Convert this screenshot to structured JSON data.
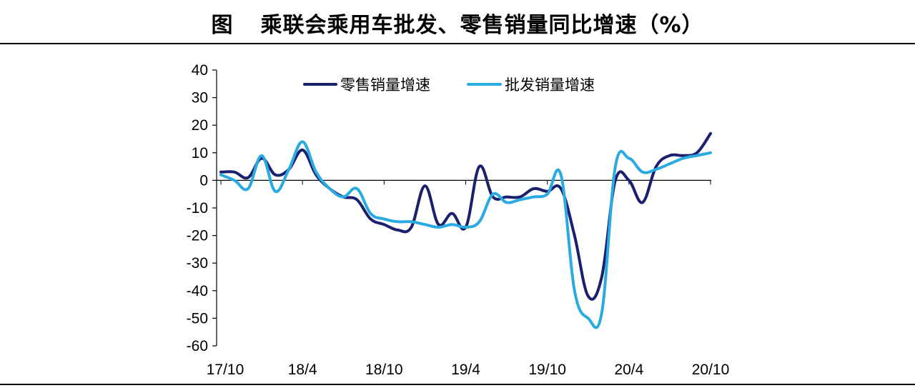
{
  "figure": {
    "prefix": "图",
    "title": "乘联会乘用车批发、零售销量同比增速（%）"
  },
  "chart_data": {
    "type": "line",
    "title": "乘联会乘用车批发、零售销量同比增速（%）",
    "xlabel": "",
    "ylabel": "",
    "ylim": [
      -60,
      40
    ],
    "yticks": [
      40,
      30,
      20,
      10,
      0,
      -10,
      -20,
      -30,
      -40,
      -50,
      -60
    ],
    "x_tick_labels": [
      "17/10",
      "18/4",
      "18/10",
      "19/4",
      "19/10",
      "20/4",
      "20/10"
    ],
    "x_tick_every": 6,
    "grid": false,
    "legend": "top-center",
    "x": [
      "17/10",
      "17/11",
      "17/12",
      "18/1",
      "18/2",
      "18/3",
      "18/4",
      "18/5",
      "18/6",
      "18/7",
      "18/8",
      "18/9",
      "18/10",
      "18/11",
      "18/12",
      "19/1",
      "19/2",
      "19/3",
      "19/4",
      "19/5",
      "19/6",
      "19/7",
      "19/8",
      "19/9",
      "19/10",
      "19/11",
      "19/12",
      "20/1",
      "20/2",
      "20/3",
      "20/4",
      "20/5",
      "20/6",
      "20/7",
      "20/8",
      "20/9",
      "20/10"
    ],
    "series": [
      {
        "name": "零售销量增速",
        "color": "#1a1f6e",
        "values": [
          3,
          3,
          1,
          8,
          2,
          4,
          11,
          2,
          -3,
          -6,
          -7,
          -14,
          -16,
          -18,
          -17,
          -2,
          -16,
          -12,
          -17,
          5,
          -6,
          -6,
          -6,
          -3,
          -4,
          -3,
          -20,
          -42,
          -35,
          0,
          0,
          -8,
          5,
          9,
          9,
          10,
          17
        ]
      },
      {
        "name": "批发销量增速",
        "color": "#29abe2",
        "values": [
          2,
          0,
          -3,
          9,
          -4,
          4,
          14,
          3,
          -3,
          -6,
          -3,
          -12,
          -14,
          -15,
          -15,
          -16,
          -17,
          -16,
          -17,
          -15,
          -5,
          -8,
          -7,
          -6,
          -5,
          2,
          -40,
          -50,
          -48,
          5,
          8,
          3,
          4,
          6,
          8,
          9,
          10
        ]
      }
    ]
  }
}
